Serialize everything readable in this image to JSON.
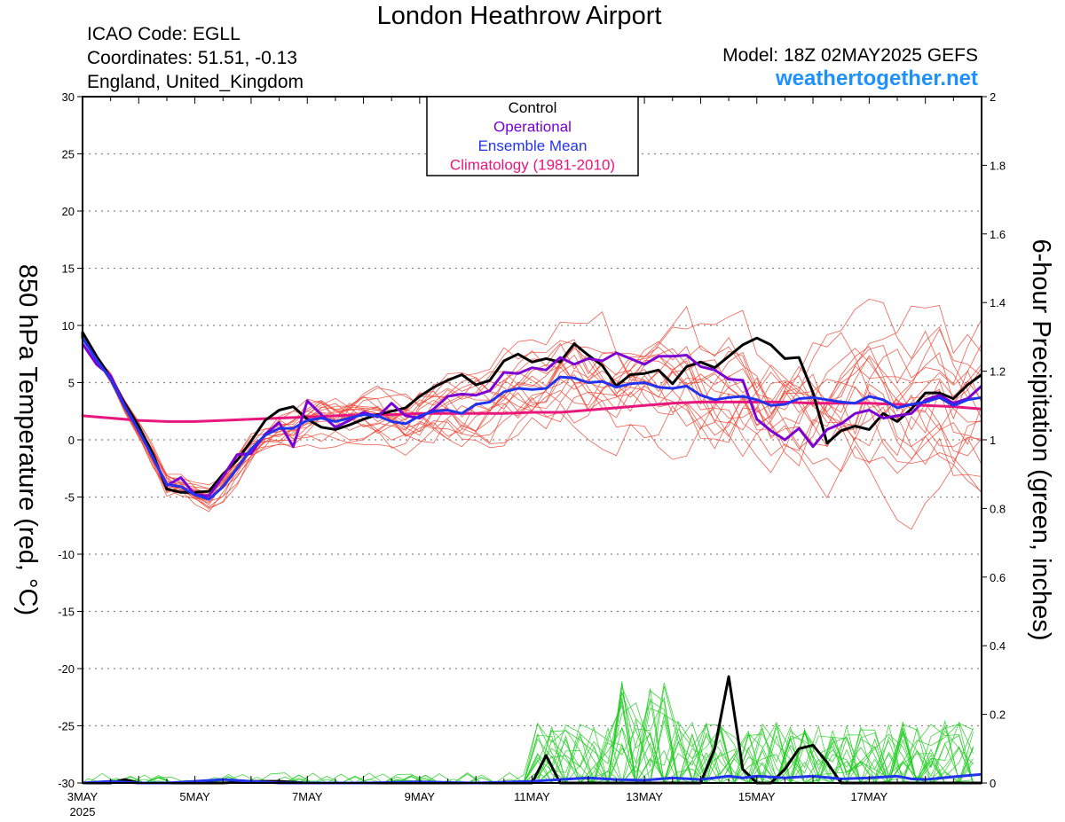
{
  "header": {
    "title": "London Heathrow Airport",
    "icao": "ICAO Code: EGLL",
    "coordinates": "Coordinates: 51.51, -0.13",
    "region": "England, United_Kingdom",
    "model": "Model: 18Z 02MAY2025 GEFS",
    "site": "weathertogether.net"
  },
  "colors": {
    "control": "#000000",
    "operational": "#7b00d4",
    "ensemble_mean": "#2233ee",
    "climatology": "#e8177d",
    "members_temp": "#ee4433",
    "members_precip": "#22cc22",
    "site": "#1e90ff"
  },
  "chart_data": {
    "type": "line",
    "x_unit": "days since 3MAY 2025 00Z",
    "xlim": [
      0,
      16
    ],
    "y_left": {
      "label": "850 hPa Temperature (red, °C)",
      "lim": [
        -30,
        30
      ],
      "ticks": [
        "30",
        "25",
        "20",
        "15",
        "10",
        "5",
        "0",
        "-5",
        "-10",
        "-15",
        "-20",
        "-25",
        "-30"
      ]
    },
    "y_right": {
      "label": "6-hour Precipitation (green, inches)",
      "lim": [
        0,
        2
      ],
      "ticks": [
        "2",
        "1.8",
        "1.6",
        "1.4",
        "1.2",
        "1",
        "0.8",
        "0.6",
        "0.4",
        "0.2",
        "0"
      ]
    },
    "x_ticks": [
      {
        "label": "3MAY",
        "sub": "2025",
        "day": 0
      },
      {
        "label": "5MAY",
        "day": 2
      },
      {
        "label": "7MAY",
        "day": 4
      },
      {
        "label": "9MAY",
        "day": 6
      },
      {
        "label": "11MAY",
        "day": 8
      },
      {
        "label": "13MAY",
        "day": 10
      },
      {
        "label": "15MAY",
        "day": 12
      },
      {
        "label": "17MAY",
        "day": 14
      }
    ],
    "grid": true,
    "legend": {
      "placement": "top-center",
      "entries": [
        "Control",
        "Operational",
        "Ensemble Mean",
        "Climatology (1981-2010)"
      ]
    },
    "series": [
      {
        "name": "Control",
        "axis": "left",
        "x": [
          -0.15,
          0,
          0.25,
          0.5,
          0.75,
          1.0,
          1.25,
          1.5,
          1.75,
          2.0,
          2.25,
          2.5,
          2.75,
          3.0,
          3.25,
          3.5,
          3.75,
          4.0,
          4.25,
          4.5,
          4.75,
          5.0,
          5.25,
          5.5,
          5.75,
          6.0,
          6.25,
          6.5,
          6.75,
          7.0,
          7.25,
          7.5,
          7.75,
          8.0,
          8.25,
          8.5,
          8.75,
          9.0,
          9.25,
          9.5,
          9.75,
          10.0,
          10.25,
          10.5,
          10.75,
          11.0,
          11.25,
          11.5,
          11.75,
          12.0,
          12.25,
          12.5,
          12.75,
          13.0,
          13.25,
          13.5,
          13.75,
          14.0,
          14.25,
          14.5,
          14.75,
          15.0,
          15.25,
          15.5,
          15.75,
          16.0
        ],
        "y": [
          8.8,
          9.4,
          7.3,
          5.5,
          3.2,
          1.2,
          -1.2,
          -4.3,
          -4.6,
          -4.6,
          -4.5,
          -3.0,
          -1.8,
          -0.1,
          1.7,
          2.6,
          2.9,
          1.8,
          1.1,
          0.9,
          1.3,
          1.8,
          2.2,
          2.5,
          2.8,
          3.8,
          4.6,
          5.2,
          5.7,
          4.8,
          5.2,
          6.9,
          7.5,
          6.8,
          7.1,
          6.8,
          8.4,
          7.4,
          6.5,
          4.7,
          5.7,
          5.8,
          6.1,
          4.9,
          6.4,
          6.8,
          6.3,
          7.3,
          8.3,
          8.9,
          8.3,
          7.1,
          7.2,
          4.1,
          -0.3,
          0.8,
          1.2,
          0.9,
          2.3,
          1.6,
          2.7,
          4.1,
          4.1,
          3.6,
          4.8,
          5.7
        ]
      },
      {
        "name": "Operational",
        "axis": "left",
        "x": [
          -0.15,
          0,
          0.25,
          0.5,
          0.75,
          1.0,
          1.25,
          1.5,
          1.75,
          2.0,
          2.25,
          2.5,
          2.75,
          3.0,
          3.25,
          3.5,
          3.75,
          4.0,
          4.25,
          4.5,
          4.75,
          5.0,
          5.25,
          5.5,
          5.75,
          6.0,
          6.25,
          6.5,
          6.75,
          7.0,
          7.25,
          7.5,
          7.75,
          8.0,
          8.25,
          8.5,
          8.75,
          9.0,
          9.25,
          9.5,
          9.75,
          10.0,
          10.25,
          10.5,
          10.75,
          11.0,
          11.25,
          11.5,
          11.75,
          12.0,
          12.25,
          12.5,
          12.75,
          13.0,
          13.25,
          13.5,
          13.75,
          14.0,
          14.25,
          14.5,
          14.75,
          15.0,
          15.25,
          15.5,
          15.75,
          16.0
        ],
        "y": [
          8.4,
          8.4,
          6.6,
          5.6,
          3.0,
          0.8,
          -1.5,
          -4.0,
          -3.3,
          -4.8,
          -4.9,
          -3.2,
          -1.3,
          -1.2,
          0.5,
          1.5,
          -0.6,
          3.4,
          2.2,
          1.1,
          1.7,
          2.4,
          2.0,
          3.2,
          2.1,
          1.9,
          2.7,
          3.8,
          4.0,
          3.9,
          4.3,
          5.9,
          5.8,
          6.3,
          6.1,
          7.2,
          6.6,
          7.1,
          6.9,
          7.6,
          7.1,
          6.6,
          7.3,
          7.3,
          7.4,
          6.4,
          6.1,
          5.3,
          5.2,
          1.8,
          0.8,
          0.0,
          1.0,
          -0.6,
          0.9,
          1.4,
          2.3,
          2.6,
          1.9,
          2.1,
          2.3,
          3.5,
          3.9,
          3.2,
          3.6,
          4.7
        ]
      },
      {
        "name": "Ensemble Mean",
        "axis": "left",
        "x": [
          -0.15,
          0,
          0.25,
          0.5,
          0.75,
          1.0,
          1.25,
          1.5,
          1.75,
          2.0,
          2.25,
          2.5,
          2.75,
          3.0,
          3.25,
          3.5,
          3.75,
          4.0,
          4.25,
          4.5,
          4.75,
          5.0,
          5.25,
          5.5,
          5.75,
          6.0,
          6.25,
          6.5,
          6.75,
          7.0,
          7.25,
          7.5,
          7.75,
          8.0,
          8.25,
          8.5,
          8.75,
          9.0,
          9.25,
          9.5,
          9.75,
          10.0,
          10.25,
          10.5,
          10.75,
          11.0,
          11.25,
          11.5,
          11.75,
          12.0,
          12.25,
          12.5,
          12.75,
          13.0,
          13.25,
          13.5,
          13.75,
          14.0,
          14.25,
          14.5,
          14.75,
          15.0,
          15.25,
          15.5,
          15.75,
          16.0
        ],
        "y": [
          8.8,
          8.9,
          7.0,
          5.3,
          2.9,
          0.8,
          -1.5,
          -3.9,
          -4.1,
          -4.8,
          -5.2,
          -4.1,
          -2.5,
          -0.8,
          0.4,
          1.0,
          1.0,
          1.7,
          1.9,
          1.6,
          1.9,
          2.2,
          2.1,
          1.6,
          1.4,
          2.1,
          2.5,
          2.6,
          2.3,
          3.1,
          3.3,
          4.2,
          4.5,
          4.4,
          4.5,
          5.5,
          5.4,
          5.0,
          5.1,
          4.6,
          4.9,
          5.0,
          4.6,
          4.5,
          4.7,
          3.9,
          3.5,
          3.7,
          3.8,
          3.5,
          3.0,
          3.1,
          3.6,
          3.7,
          3.5,
          3.3,
          3.2,
          3.8,
          3.5,
          2.8,
          3.1,
          3.3,
          3.7,
          3.0,
          3.5,
          3.7
        ]
      },
      {
        "name": "Climatology (1981-2010)",
        "axis": "left",
        "x": [
          -0.15,
          0,
          0.5,
          1.0,
          1.5,
          2.0,
          2.5,
          3.0,
          3.5,
          4.0,
          4.5,
          5.0,
          5.5,
          6.0,
          6.5,
          7.0,
          7.5,
          8.0,
          8.5,
          9.0,
          9.5,
          10.0,
          10.5,
          11.0,
          11.5,
          12.0,
          12.5,
          13.0,
          13.5,
          14.0,
          14.5,
          15.0,
          15.5,
          16.0
        ],
        "y": [
          2.2,
          2.1,
          1.9,
          1.7,
          1.6,
          1.6,
          1.7,
          1.8,
          1.9,
          2.0,
          2.1,
          2.2,
          2.2,
          2.3,
          2.3,
          2.3,
          2.3,
          2.4,
          2.4,
          2.6,
          2.8,
          3.0,
          3.2,
          3.3,
          3.3,
          3.3,
          3.3,
          3.2,
          3.2,
          3.2,
          3.1,
          3.0,
          2.9,
          2.7
        ]
      },
      {
        "name": "Control",
        "axis": "right",
        "x": [
          -0.15,
          0,
          0.5,
          0.75,
          1.0,
          1.5,
          2.0,
          2.5,
          3.0,
          3.5,
          4.0,
          5.0,
          6.0,
          7.0,
          8.0,
          8.25,
          8.5,
          8.75,
          9.0,
          10.0,
          10.5,
          11.0,
          11.25,
          11.5,
          11.75,
          12.0,
          12.25,
          12.5,
          12.75,
          13.0,
          13.25,
          13.5,
          13.75,
          14.0,
          15.0,
          15.5,
          16.0
        ],
        "y": [
          0,
          0,
          0,
          0.01,
          0,
          0,
          0,
          0,
          0.005,
          0.005,
          0,
          0,
          0,
          0,
          0,
          0.08,
          0,
          0,
          0,
          0,
          0,
          0,
          0.1,
          0.31,
          0.04,
          0,
          0,
          0.04,
          0.1,
          0.11,
          0.06,
          0,
          0,
          0,
          0,
          0,
          0
        ]
      },
      {
        "name": "Ensemble Mean",
        "axis": "right",
        "x": [
          -0.15,
          0,
          0.5,
          1.0,
          1.5,
          2.0,
          2.5,
          3.0,
          3.5,
          4.0,
          5.0,
          6.0,
          7.0,
          8.0,
          8.5,
          9.0,
          9.5,
          10.0,
          10.5,
          11.0,
          11.5,
          11.75,
          12.0,
          12.5,
          13.0,
          13.5,
          14.0,
          14.5,
          14.75,
          15.0,
          15.5,
          16.0
        ],
        "y": [
          0,
          0,
          0.005,
          0,
          0,
          0.005,
          0.01,
          0.005,
          0,
          0,
          0,
          0.003,
          0,
          0.005,
          0.01,
          0.015,
          0.01,
          0.008,
          0.015,
          0.01,
          0.02,
          0.015,
          0.02,
          0.015,
          0.02,
          0.012,
          0.015,
          0.02,
          0.012,
          0.01,
          0.018,
          0.025
        ]
      }
    ]
  }
}
